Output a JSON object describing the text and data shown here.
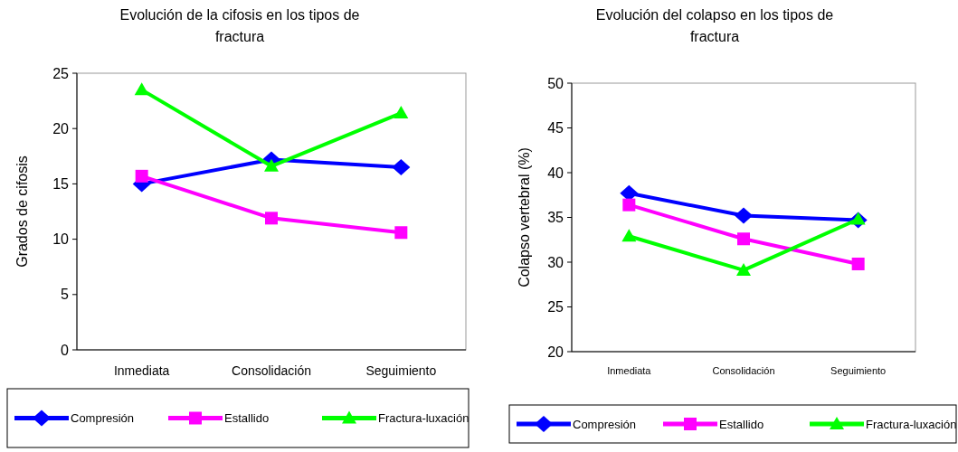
{
  "chart_data": [
    {
      "type": "line",
      "title": "Evolución de la cifosis en los tipos de fractura",
      "ylabel": "Grados de cifosis",
      "categories": [
        "Inmediata",
        "Consolidación",
        "Seguimiento"
      ],
      "ylim": [
        0,
        25
      ],
      "yticks": [
        0,
        5,
        10,
        15,
        20,
        25
      ],
      "grid": false,
      "legend": "bottom",
      "line_style": "solid",
      "series": [
        {
          "name": "Compresión",
          "color": "#0000ff",
          "marker": "diamond",
          "values": [
            15.0,
            17.2,
            16.5
          ]
        },
        {
          "name": "Estallido",
          "color": "#ff00ff",
          "marker": "square",
          "values": [
            15.7,
            11.9,
            10.6
          ]
        },
        {
          "name": "Fractura-luxación",
          "color": "#00ff00",
          "marker": "triangle",
          "values": [
            23.5,
            16.6,
            21.4
          ]
        }
      ]
    },
    {
      "type": "line",
      "title": "Evolución del colapso en los tipos de fractura",
      "ylabel": "Colapso vertebral (%)",
      "categories": [
        "Inmediata",
        "Consolidación",
        "Seguimiento"
      ],
      "ylim": [
        20,
        50
      ],
      "yticks": [
        20,
        25,
        30,
        35,
        40,
        45,
        50
      ],
      "grid": false,
      "legend": "bottom",
      "line_style": "solid",
      "series": [
        {
          "name": "Compresión",
          "color": "#0000ff",
          "marker": "diamond",
          "values": [
            37.7,
            35.2,
            34.7
          ]
        },
        {
          "name": "Estallido",
          "color": "#ff00ff",
          "marker": "square",
          "values": [
            36.4,
            32.6,
            29.8
          ]
        },
        {
          "name": "Fractura-luxación",
          "color": "#00ff00",
          "marker": "triangle",
          "values": [
            32.9,
            29.1,
            34.8
          ]
        }
      ]
    }
  ]
}
